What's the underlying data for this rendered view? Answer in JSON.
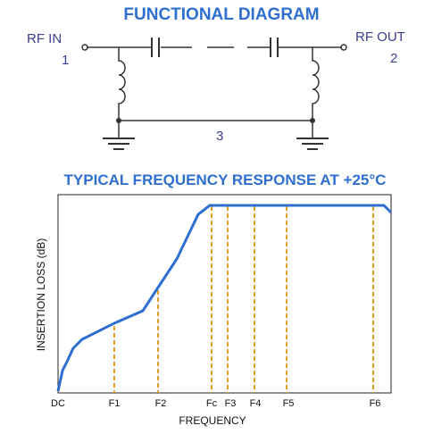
{
  "diagram": {
    "title": "FUNCTIONAL DIAGRAM",
    "ports": [
      {
        "label": "RF  IN",
        "number": "1"
      },
      {
        "label": "RF OUT",
        "number": "2"
      }
    ],
    "ground_label": "3"
  },
  "response": {
    "title": "TYPICAL FREQUENCY RESPONSE AT +25°C",
    "y_label": "INSERTION LOSS (dB)",
    "x_label": "FREQUENCY",
    "x_markers": [
      "DC",
      "F1",
      "F2",
      "Fc",
      "F3",
      "F4",
      "F5",
      "F6"
    ]
  }
}
